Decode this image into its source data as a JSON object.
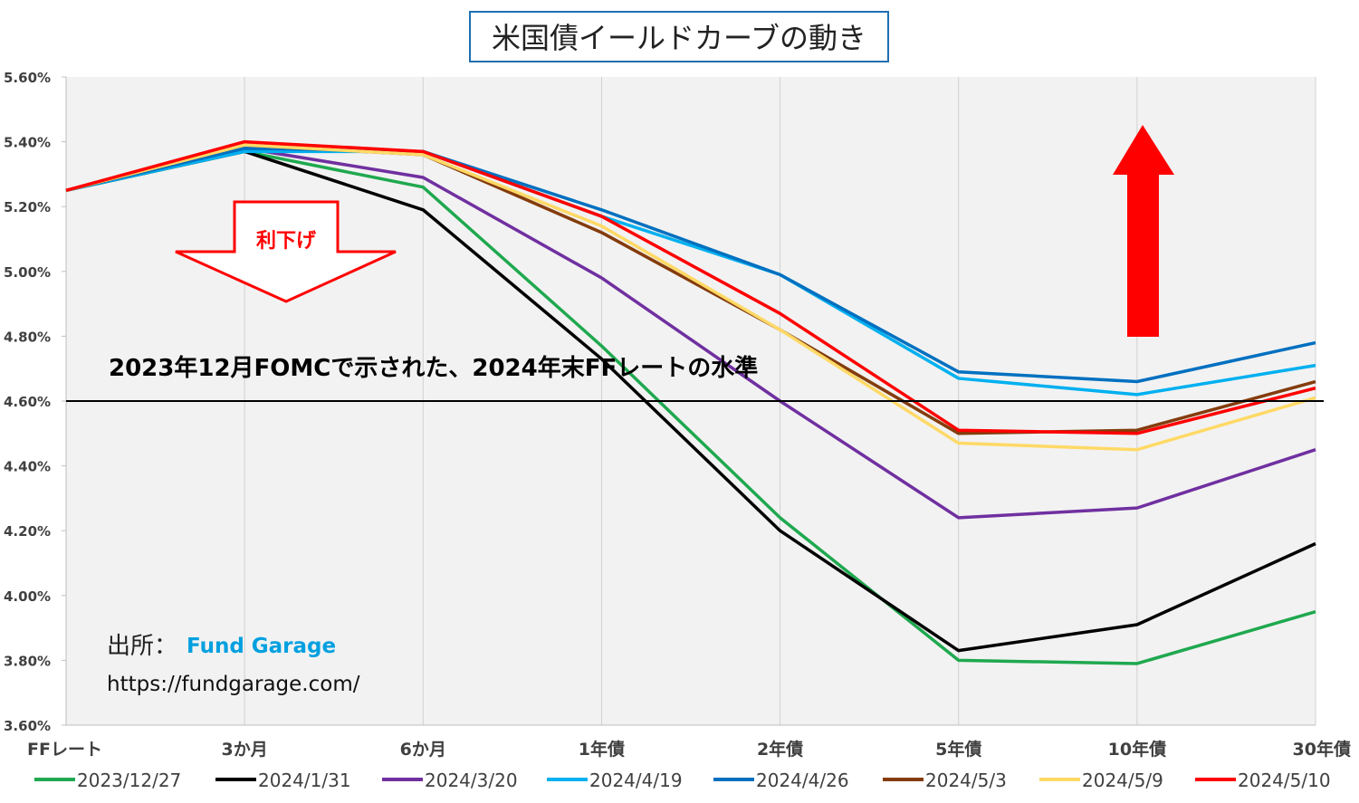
{
  "chart_data": {
    "type": "line",
    "title": "米国債イールドカーブの動き",
    "categories": [
      "FFレート",
      "3か月",
      "6か月",
      "1年債",
      "2年債",
      "5年債",
      "10年債",
      "30年債"
    ],
    "y_tick_labels": [
      "3.60%",
      "3.80%",
      "4.00%",
      "4.20%",
      "4.40%",
      "4.60%",
      "4.80%",
      "5.00%",
      "5.20%",
      "5.40%",
      "5.60%"
    ],
    "ylim": [
      3.6,
      5.6
    ],
    "grid": "vertical",
    "legend_position": "bottom",
    "series": [
      {
        "name": "2023/12/27",
        "color": "#1fa84f",
        "values": [
          5.25,
          5.37,
          5.26,
          4.77,
          4.24,
          3.8,
          3.79,
          3.95
        ]
      },
      {
        "name": "2024/1/31",
        "color": "#000000",
        "values": [
          5.25,
          5.37,
          5.19,
          4.73,
          4.2,
          3.83,
          3.91,
          4.16
        ]
      },
      {
        "name": "2024/3/20",
        "color": "#7030a0",
        "values": [
          5.25,
          5.38,
          5.29,
          4.98,
          4.6,
          4.24,
          4.27,
          4.45
        ]
      },
      {
        "name": "2024/4/19",
        "color": "#00b0f0",
        "values": [
          5.25,
          5.37,
          5.37,
          5.17,
          4.99,
          4.67,
          4.62,
          4.71
        ]
      },
      {
        "name": "2024/4/26",
        "color": "#0070c0",
        "values": [
          5.25,
          5.38,
          5.37,
          5.19,
          4.99,
          4.69,
          4.66,
          4.78
        ]
      },
      {
        "name": "2024/5/3",
        "color": "#843c0c",
        "values": [
          5.25,
          5.39,
          5.36,
          5.12,
          4.82,
          4.5,
          4.51,
          4.66
        ]
      },
      {
        "name": "2024/5/9",
        "color": "#ffd966",
        "values": [
          5.25,
          5.39,
          5.36,
          5.14,
          4.82,
          4.47,
          4.45,
          4.61
        ]
      },
      {
        "name": "2024/5/10",
        "color": "#ff0000",
        "values": [
          5.25,
          5.4,
          5.37,
          5.17,
          4.87,
          4.51,
          4.5,
          4.64
        ]
      }
    ],
    "reference_line": {
      "value": 4.6,
      "label": "2023年12月FOMCで示された、2024年末FFレートの水準"
    },
    "annotations": {
      "down_arrow_label": "利下げ",
      "source_label": "出所：",
      "source_name": "Fund Garage",
      "source_url": "https://fundgarage.com/"
    },
    "colors": {
      "plot_background": "#f2f2f2",
      "title_border": "#1f6fb2",
      "up_arrow": "#ff0000",
      "down_arrow_border": "#ff0000",
      "source_name": "#00a0e0"
    }
  }
}
